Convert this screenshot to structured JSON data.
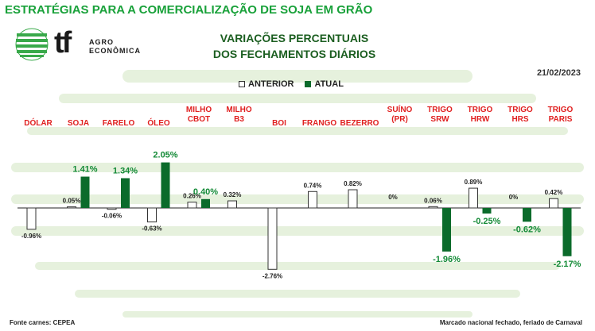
{
  "header": {
    "page_title": "ESTRATÉGIAS PARA A COMERCIALIZAÇÃO DE SOJA EM GRÃO",
    "logo_mark": "tf",
    "logo_line1": "AGRO",
    "logo_line2": "ECONÔMICA"
  },
  "chart_title_line1": "VARIAÇÕES PERCENTUAIS",
  "chart_title_line2": "DOS FECHAMENTOS DIÁRIOS",
  "date": "21/02/2023",
  "legend": {
    "prev": "ANTERIOR",
    "curr": "ATUAL"
  },
  "footer": {
    "left": "Fonte carnes: CEPEA",
    "right": "Marcado nacional fechado, feriado de Carnaval"
  },
  "colors": {
    "title_green": "#19a13a",
    "bar_green": "#0b6b2b",
    "category_red": "#e02020",
    "label_green": "#138a36",
    "stripe_green": "#e6f1dd"
  },
  "chart_data": {
    "type": "bar",
    "categories": [
      [
        "DÓLAR"
      ],
      [
        "SOJA"
      ],
      [
        "FARELO"
      ],
      [
        "ÓLEO"
      ],
      [
        "MILHO",
        "CBOT"
      ],
      [
        "MILHO",
        "B3"
      ],
      [
        "BOI"
      ],
      [
        "FRANGO"
      ],
      [
        "BEZERRO"
      ],
      [
        "SUÍNO",
        "(PR)"
      ],
      [
        "TRIGO",
        "SRW"
      ],
      [
        "TRIGO",
        "HRW"
      ],
      [
        "TRIGO",
        "HRS"
      ],
      [
        "TRIGO",
        "PARIS"
      ]
    ],
    "series": [
      {
        "name": "ANTERIOR",
        "values": [
          -0.96,
          0.05,
          -0.06,
          -0.63,
          0.26,
          0.32,
          -2.76,
          0.74,
          0.82,
          0,
          0.06,
          0.89,
          0,
          0.42
        ],
        "labels": [
          "-0.96%",
          "0.05%",
          "-0.06%",
          "-0.63%",
          "0.26%",
          "0.32%",
          "-2.76%",
          "0.74%",
          "0.82%",
          "0%",
          "0.06%",
          "0.89%",
          "0%",
          "0.42%"
        ]
      },
      {
        "name": "ATUAL",
        "values": [
          null,
          1.41,
          1.34,
          2.05,
          0.4,
          null,
          null,
          null,
          null,
          null,
          -1.96,
          -0.25,
          -0.62,
          -2.17
        ],
        "labels": [
          "",
          "1.41%",
          "1.34%",
          "2.05%",
          "0.40%",
          "",
          "",
          "",
          "",
          "",
          "-1.96%",
          "-0.25%",
          "-0.62%",
          "-2.17%"
        ]
      }
    ]
  }
}
